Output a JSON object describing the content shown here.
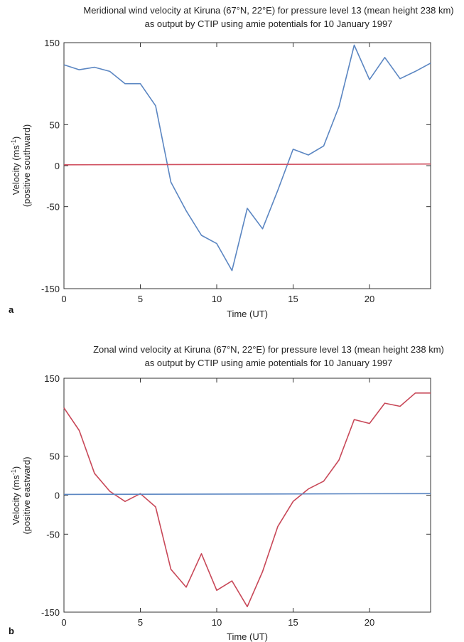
{
  "chart_data": [
    {
      "type": "line",
      "panel_label": "a",
      "title_line1": "Meridional wind velocity at Kiruna (67°N, 22°E) for pressure level 13 (mean height 238 km)",
      "title_line2": "as output by CTIP using amie potentials for 10 January 1997",
      "xlabel": "Time (UT)",
      "ylabel_line1": "Velocity (ms",
      "ylabel_sup": "-1",
      "ylabel_line1_end": ")",
      "ylabel_line2": "(positive southward)",
      "xlim": [
        0,
        24
      ],
      "ylim": [
        -150,
        150
      ],
      "xticks": [
        0,
        5,
        10,
        15,
        20
      ],
      "yticks": [
        150,
        50,
        0,
        -50,
        -150
      ],
      "series": [
        {
          "color": "#5b86c2",
          "x": [
            0,
            1,
            2,
            3,
            4,
            5,
            6,
            7,
            8,
            9,
            10,
            11,
            12,
            13,
            14,
            15,
            16,
            17,
            18,
            19,
            20,
            21,
            22,
            23,
            24
          ],
          "y": [
            123,
            117,
            120,
            115,
            100,
            100,
            73,
            -20,
            -55,
            -85,
            -95,
            -128,
            -52,
            -77,
            -30,
            20,
            13,
            24,
            72,
            147,
            105,
            132,
            106,
            115,
            125
          ]
        },
        {
          "color": "#d05060",
          "x": [
            0,
            24
          ],
          "y": [
            1,
            2
          ]
        }
      ]
    },
    {
      "type": "line",
      "panel_label": "b",
      "title_line1": "Zonal wind velocity at Kiruna (67°N, 22°E) for pressure level 13 (mean height 238 km)",
      "title_line2": "as output by CTIP using amie potentials for 10 January 1997",
      "xlabel": "Time (UT)",
      "ylabel_line1": "Velocity (ms",
      "ylabel_sup": "-1",
      "ylabel_line1_end": ")",
      "ylabel_line2": "(positive eastward)",
      "xlim": [
        0,
        24
      ],
      "ylim": [
        -150,
        150
      ],
      "xticks": [
        0,
        5,
        10,
        15,
        20
      ],
      "yticks": [
        150,
        50,
        0,
        -50,
        -150
      ],
      "series": [
        {
          "color": "#c84858",
          "x": [
            0,
            1,
            2,
            3,
            4,
            5,
            6,
            7,
            8,
            9,
            10,
            11,
            12,
            13,
            14,
            15,
            16,
            17,
            18,
            19,
            20,
            21,
            22,
            23,
            24
          ],
          "y": [
            112,
            83,
            28,
            5,
            -8,
            2,
            -15,
            -95,
            -118,
            -75,
            -122,
            -110,
            -143,
            -98,
            -40,
            -8,
            8,
            18,
            45,
            97,
            92,
            118,
            114,
            131,
            131
          ]
        },
        {
          "color": "#5b86c2",
          "x": [
            0,
            24
          ],
          "y": [
            1,
            2
          ]
        }
      ]
    }
  ]
}
